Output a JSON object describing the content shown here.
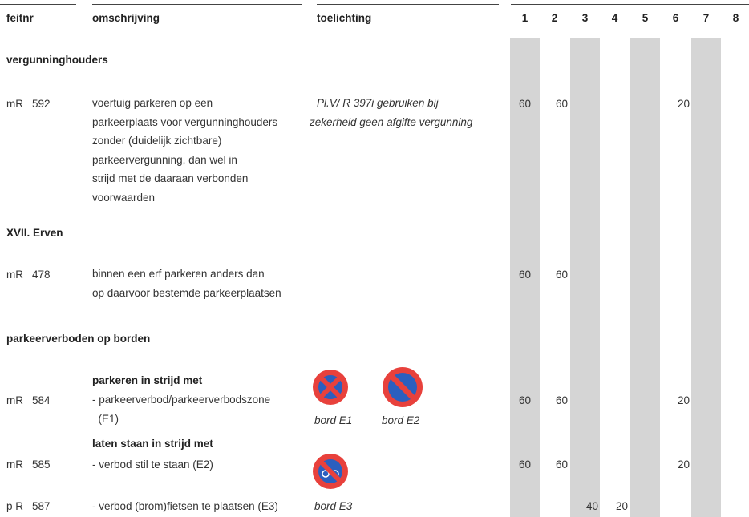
{
  "columns": {
    "feitnr": "feitnr",
    "omschrijving": "omschrijving",
    "toelichting": "toelichting",
    "nums": [
      "1",
      "2",
      "3",
      "4",
      "5",
      "6",
      "7",
      "8"
    ]
  },
  "sections": {
    "vergunninghouders": "vergunninghouders",
    "erven": "XVII. Erven",
    "parkeerverboden": "parkeerverboden op borden"
  },
  "rows": {
    "r592": {
      "prefix": "mR",
      "code": "592",
      "description": [
        "voertuig parkeren op een",
        "parkeerplaats voor vergunninghouders",
        "zonder (duidelijk zichtbare)",
        "parkeervergunning, dan wel in",
        "strijd met de daaraan verbonden",
        "voorwaarden"
      ],
      "note": [
        "Pl.V/  R 397i gebruiken bij",
        "zekerheid geen afgifte vergunning"
      ],
      "v1": "60",
      "v2": "60",
      "v6": "20"
    },
    "r478": {
      "prefix": "mR",
      "code": "478",
      "description": [
        "binnen een erf parkeren anders dan",
        "op daarvoor bestemde parkeerplaatsen"
      ],
      "v1": "60",
      "v2": "60"
    },
    "heading_parkeren": "parkeren in strijd met",
    "r584": {
      "prefix": "mR",
      "code": "584",
      "description": [
        "- parkeerverbod/parkeerverbodszone",
        "  (E1)"
      ],
      "v1": "60",
      "v2": "60",
      "v6": "20"
    },
    "heading_laten": "laten staan in strijd met",
    "r585": {
      "prefix": "mR",
      "code": "585",
      "description": "- verbod stil te staan (E2)",
      "v1": "60",
      "v2": "60",
      "v6": "20"
    },
    "r587": {
      "prefix": "p R",
      "code": "587",
      "description": "- verbod (brom)fietsen te plaatsen (E3)",
      "v3": "40",
      "v4": "20"
    }
  },
  "signs": {
    "e1_label": "bord E1",
    "e2_label": "bord E2",
    "e3_label": "bord E3",
    "e1_icon": "no-parking-sign-icon",
    "e2_icon": "no-stopping-sign-icon",
    "e3_icon": "no-bicycle-parking-sign-icon",
    "red": "#e8413c",
    "blue": "#2b5fbf"
  },
  "colors": {
    "shade": "#d5d5d5",
    "text": "#333333"
  }
}
